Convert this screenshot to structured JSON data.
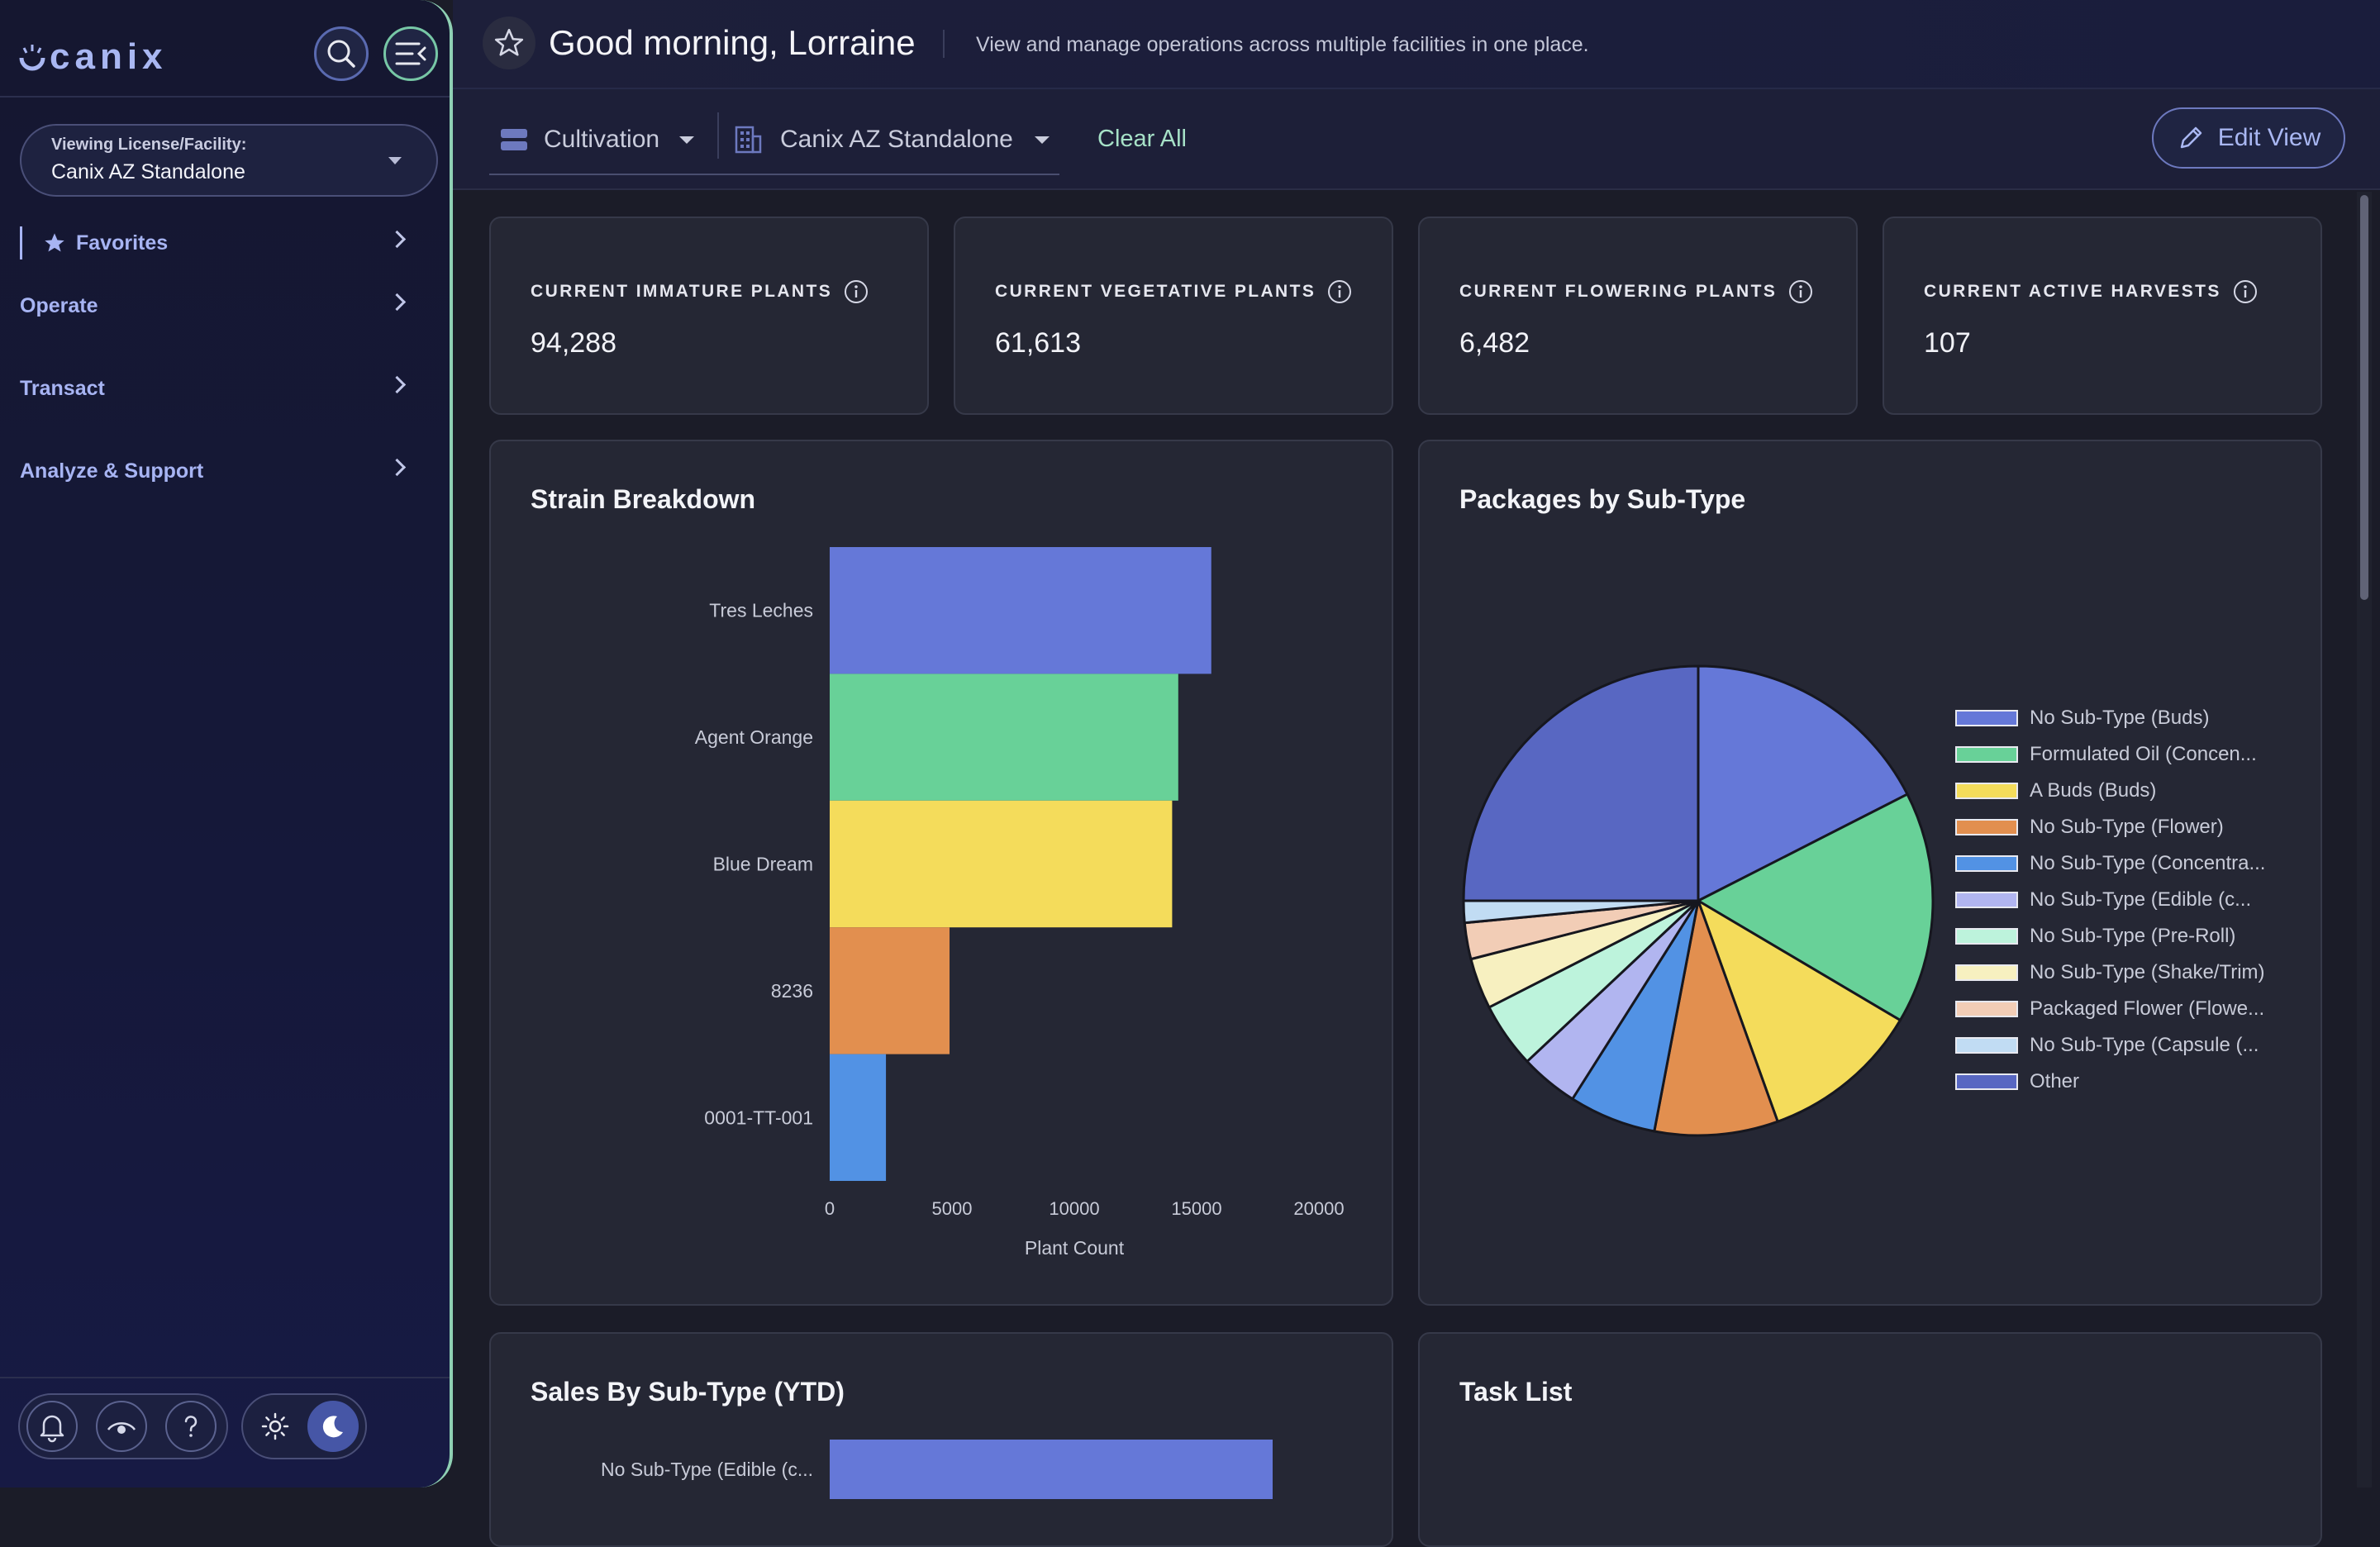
{
  "sidebar": {
    "logo": "canix",
    "facility_caption": "Viewing License/Facility:",
    "facility_value": "Canix AZ Standalone",
    "nav": [
      {
        "label": "Favorites"
      },
      {
        "label": "Operate"
      },
      {
        "label": "Transact"
      },
      {
        "label": "Analyze & Support"
      }
    ]
  },
  "header": {
    "greeting": "Good morning, Lorraine",
    "subtitle": "View and manage operations across multiple facilities in one place."
  },
  "filters": {
    "department": "Cultivation",
    "facility": "Canix AZ Standalone",
    "clear_all": "Clear All",
    "edit_view": "Edit View"
  },
  "stats": [
    {
      "label": "CURRENT IMMATURE PLANTS",
      "value": "94,288"
    },
    {
      "label": "CURRENT VEGETATIVE PLANTS",
      "value": "61,613"
    },
    {
      "label": "CURRENT FLOWERING PLANTS",
      "value": "6,482"
    },
    {
      "label": "CURRENT ACTIVE HARVESTS",
      "value": "107"
    }
  ],
  "strain_card": {
    "title": "Strain Breakdown"
  },
  "packages_card": {
    "title": "Packages by Sub-Type"
  },
  "sales_card": {
    "title": "Sales By Sub-Type (YTD)"
  },
  "task_card": {
    "title": "Task List"
  },
  "colors": {
    "accent": "#a9b7f2",
    "mint": "#8fd0b4"
  },
  "chart_data": [
    {
      "type": "bar",
      "orientation": "horizontal",
      "title": "Strain Breakdown",
      "categories": [
        "Tres Leches",
        "Agent Orange",
        "Blue Dream",
        "8236",
        "0001-TT-001"
      ],
      "values": [
        15600,
        14250,
        14000,
        4900,
        2300
      ],
      "colors": [
        "#6578d8",
        "#68d198",
        "#f4dc5b",
        "#e28f4f",
        "#5292e4"
      ],
      "xlabel": "Plant Count",
      "ylabel": "",
      "xlim": [
        0,
        20000
      ],
      "xticks": [
        "0",
        "5000",
        "10000",
        "15000",
        "20000"
      ],
      "grid": false,
      "legend": "none"
    },
    {
      "type": "pie",
      "title": "Packages by Sub-Type",
      "categories": [
        "No Sub-Type (Buds)",
        "Formulated Oil (Concen...",
        "A Buds (Buds)",
        "No Sub-Type (Flower)",
        "No Sub-Type (Concentra...",
        "No Sub-Type (Edible (c...",
        "No Sub-Type (Pre-Roll)",
        "No Sub-Type (Shake/Trim)",
        "Packaged Flower (Flowe...",
        "No Sub-Type (Capsule (...",
        "Other"
      ],
      "values": [
        17.5,
        16.0,
        11.0,
        8.5,
        6.0,
        4.0,
        4.5,
        3.5,
        2.5,
        1.5,
        25.0
      ],
      "colors": [
        "#6578d8",
        "#68d198",
        "#f4dc5b",
        "#e28f4f",
        "#5292e4",
        "#b1b5f0",
        "#bdf3dc",
        "#f7f0c0",
        "#f2cdb6",
        "#c1dcf3",
        "#5867c2"
      ],
      "legend": "right"
    },
    {
      "type": "bar",
      "orientation": "horizontal",
      "title": "Sales By Sub-Type (YTD)",
      "categories": [
        "No Sub-Type (Edible (c..."
      ],
      "colors": [
        "#6578d8"
      ]
    }
  ]
}
